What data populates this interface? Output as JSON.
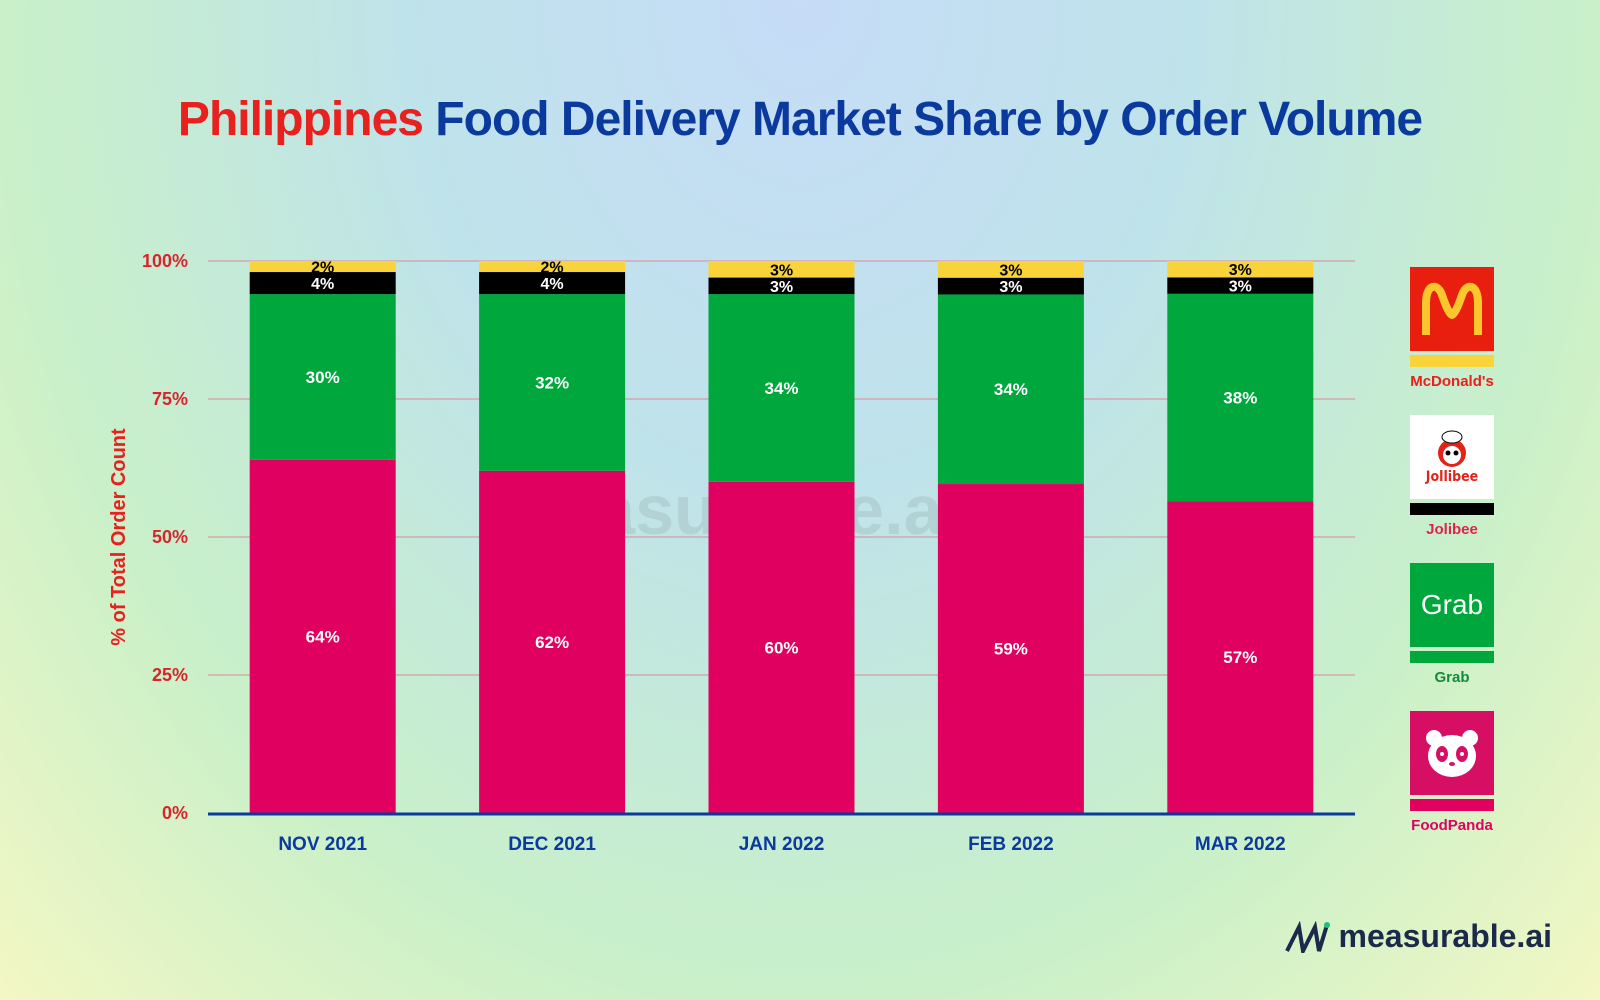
{
  "title": {
    "part1": "Philippines",
    "part2": "Food Delivery Market Share by Order Volume"
  },
  "colors": {
    "title_red": "#e8201e",
    "title_blue": "#0b3a9e",
    "foodpanda": "#e0005f",
    "grab": "#00a73c",
    "jollibee": "#000000",
    "mcdonalds": "#f8d43a"
  },
  "chart_data": {
    "type": "bar",
    "stacked": true,
    "categories": [
      "NOV 2021",
      "DEC 2021",
      "JAN 2022",
      "FEB 2022",
      "MAR 2022"
    ],
    "series": [
      {
        "name": "FoodPanda",
        "values": [
          64,
          62,
          60,
          59,
          57
        ],
        "labels": [
          "64%",
          "62%",
          "60%",
          "59%",
          "57%"
        ]
      },
      {
        "name": "Grab",
        "values": [
          30,
          32,
          34,
          34,
          38
        ],
        "labels": [
          "30%",
          "32%",
          "34%",
          "34%",
          "38%"
        ]
      },
      {
        "name": "Jolibee",
        "values": [
          4,
          4,
          3,
          3,
          3
        ],
        "labels": [
          "4%",
          "4%",
          "3%",
          "3%",
          "3%"
        ]
      },
      {
        "name": "McDonald's",
        "values": [
          2,
          2,
          3,
          3,
          3
        ],
        "labels": [
          "2%",
          "2%",
          "3%",
          "3%",
          "3%"
        ]
      }
    ],
    "ylabel": "% of Total Order Count",
    "ylim": [
      0,
      100
    ],
    "yticks": [
      "0%",
      "25%",
      "50%",
      "75%",
      "100%"
    ],
    "grid": true,
    "legend": "right"
  },
  "legend": [
    {
      "name": "McDonald's",
      "logo_text": "M",
      "icon": "mcdonalds-logo"
    },
    {
      "name": "Jolibee",
      "logo_text": "Jollibee",
      "icon": "jollibee-logo"
    },
    {
      "name": "Grab",
      "logo_text": "Grab",
      "icon": "grab-logo"
    },
    {
      "name": "FoodPanda",
      "logo_text": "",
      "icon": "foodpanda-logo"
    }
  ],
  "watermark": "measurable.ai",
  "brand": "measurable.ai"
}
